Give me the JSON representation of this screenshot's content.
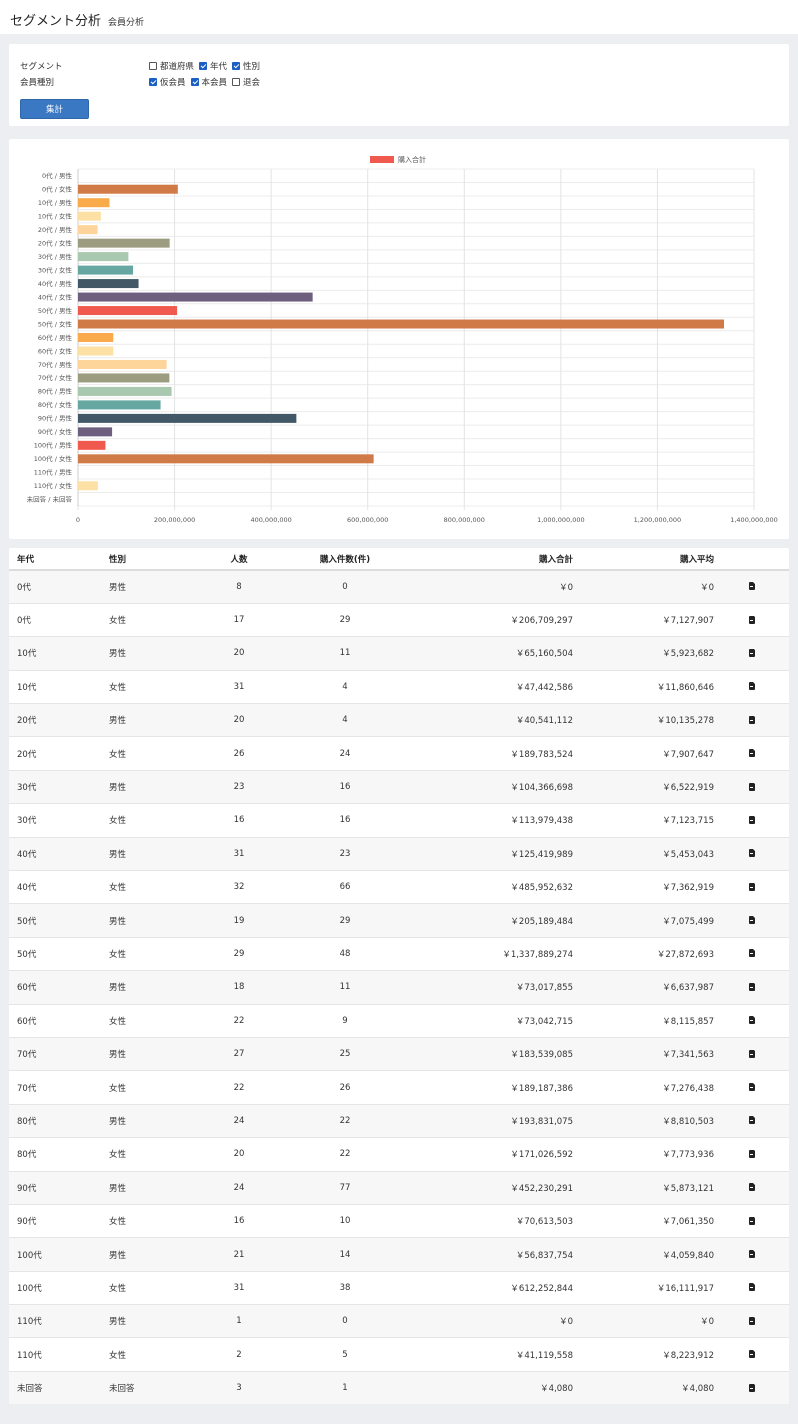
{
  "header": {
    "title": "セグメント分析",
    "subtitle": "会員分析"
  },
  "filter": {
    "segment_label": "セグメント",
    "segment_options": [
      {
        "label": "都道府県",
        "checked": false
      },
      {
        "label": "年代",
        "checked": true
      },
      {
        "label": "性別",
        "checked": true
      }
    ],
    "member_label": "会員種別",
    "member_options": [
      {
        "label": "仮会員",
        "checked": true
      },
      {
        "label": "本会員",
        "checked": true
      },
      {
        "label": "退会",
        "checked": false
      }
    ],
    "submit_label": "集計"
  },
  "chart_data": {
    "type": "bar",
    "orientation": "horizontal",
    "legend": "購入合計",
    "legend_position": "top",
    "grid": true,
    "xlim": [
      0,
      1400000000
    ],
    "x_ticks": [
      "0",
      "200,000,000",
      "400,000,000",
      "600,000,000",
      "800,000,000",
      "1,000,000,000",
      "1,200,000,000",
      "1,400,000,000"
    ],
    "categories": [
      "0代 / 男性",
      "0代 / 女性",
      "10代 / 男性",
      "10代 / 女性",
      "20代 / 男性",
      "20代 / 女性",
      "30代 / 男性",
      "30代 / 女性",
      "40代 / 男性",
      "40代 / 女性",
      "50代 / 男性",
      "50代 / 女性",
      "60代 / 男性",
      "60代 / 女性",
      "70代 / 男性",
      "70代 / 女性",
      "80代 / 男性",
      "80代 / 女性",
      "90代 / 男性",
      "90代 / 女性",
      "100代 / 男性",
      "100代 / 女性",
      "110代 / 男性",
      "110代 / 女性",
      "未回答 / 未回答"
    ],
    "values": [
      0,
      206709297,
      65160504,
      47442586,
      40541112,
      189783524,
      104366698,
      113979438,
      125419989,
      485952632,
      205189484,
      1337889274,
      73017855,
      73042715,
      183539085,
      189187386,
      193831075,
      171026592,
      452230291,
      70613503,
      56837754,
      612252844,
      0,
      41119558,
      4080
    ],
    "colors": [
      "#f05a4e",
      "#d07a47",
      "#f9aa4a",
      "#fde0a4",
      "#fdd59a",
      "#9b9c80",
      "#a8c8af",
      "#67a7a2",
      "#425866",
      "#6e5f7e"
    ]
  },
  "table": {
    "headers": [
      "年代",
      "性別",
      "人数",
      "購入件数(件)",
      "購入合計",
      "購入平均"
    ],
    "rows": [
      [
        "0代",
        "男性",
        "8",
        "0",
        "￥0",
        "￥0"
      ],
      [
        "0代",
        "女性",
        "17",
        "29",
        "￥206,709,297",
        "￥7,127,907"
      ],
      [
        "10代",
        "男性",
        "20",
        "11",
        "￥65,160,504",
        "￥5,923,682"
      ],
      [
        "10代",
        "女性",
        "31",
        "4",
        "￥47,442,586",
        "￥11,860,646"
      ],
      [
        "20代",
        "男性",
        "20",
        "4",
        "￥40,541,112",
        "￥10,135,278"
      ],
      [
        "20代",
        "女性",
        "26",
        "24",
        "￥189,783,524",
        "￥7,907,647"
      ],
      [
        "30代",
        "男性",
        "23",
        "16",
        "￥104,366,698",
        "￥6,522,919"
      ],
      [
        "30代",
        "女性",
        "16",
        "16",
        "￥113,979,438",
        "￥7,123,715"
      ],
      [
        "40代",
        "男性",
        "31",
        "23",
        "￥125,419,989",
        "￥5,453,043"
      ],
      [
        "40代",
        "女性",
        "32",
        "66",
        "￥485,952,632",
        "￥7,362,919"
      ],
      [
        "50代",
        "男性",
        "19",
        "29",
        "￥205,189,484",
        "￥7,075,499"
      ],
      [
        "50代",
        "女性",
        "29",
        "48",
        "￥1,337,889,274",
        "￥27,872,693"
      ],
      [
        "60代",
        "男性",
        "18",
        "11",
        "￥73,017,855",
        "￥6,637,987"
      ],
      [
        "60代",
        "女性",
        "22",
        "9",
        "￥73,042,715",
        "￥8,115,857"
      ],
      [
        "70代",
        "男性",
        "27",
        "25",
        "￥183,539,085",
        "￥7,341,563"
      ],
      [
        "70代",
        "女性",
        "22",
        "26",
        "￥189,187,386",
        "￥7,276,438"
      ],
      [
        "80代",
        "男性",
        "24",
        "22",
        "￥193,831,075",
        "￥8,810,503"
      ],
      [
        "80代",
        "女性",
        "20",
        "22",
        "￥171,026,592",
        "￥7,773,936"
      ],
      [
        "90代",
        "男性",
        "24",
        "77",
        "￥452,230,291",
        "￥5,873,121"
      ],
      [
        "90代",
        "女性",
        "16",
        "10",
        "￥70,613,503",
        "￥7,061,350"
      ],
      [
        "100代",
        "男性",
        "21",
        "14",
        "￥56,837,754",
        "￥4,059,840"
      ],
      [
        "100代",
        "女性",
        "31",
        "38",
        "￥612,252,844",
        "￥16,111,917"
      ],
      [
        "110代",
        "男性",
        "1",
        "0",
        "￥0",
        "￥0"
      ],
      [
        "110代",
        "女性",
        "2",
        "5",
        "￥41,119,558",
        "￥8,223,912"
      ],
      [
        "未回答",
        "未回答",
        "3",
        "1",
        "￥4,080",
        "￥4,080"
      ]
    ],
    "row_icon": "file-export-icon"
  }
}
